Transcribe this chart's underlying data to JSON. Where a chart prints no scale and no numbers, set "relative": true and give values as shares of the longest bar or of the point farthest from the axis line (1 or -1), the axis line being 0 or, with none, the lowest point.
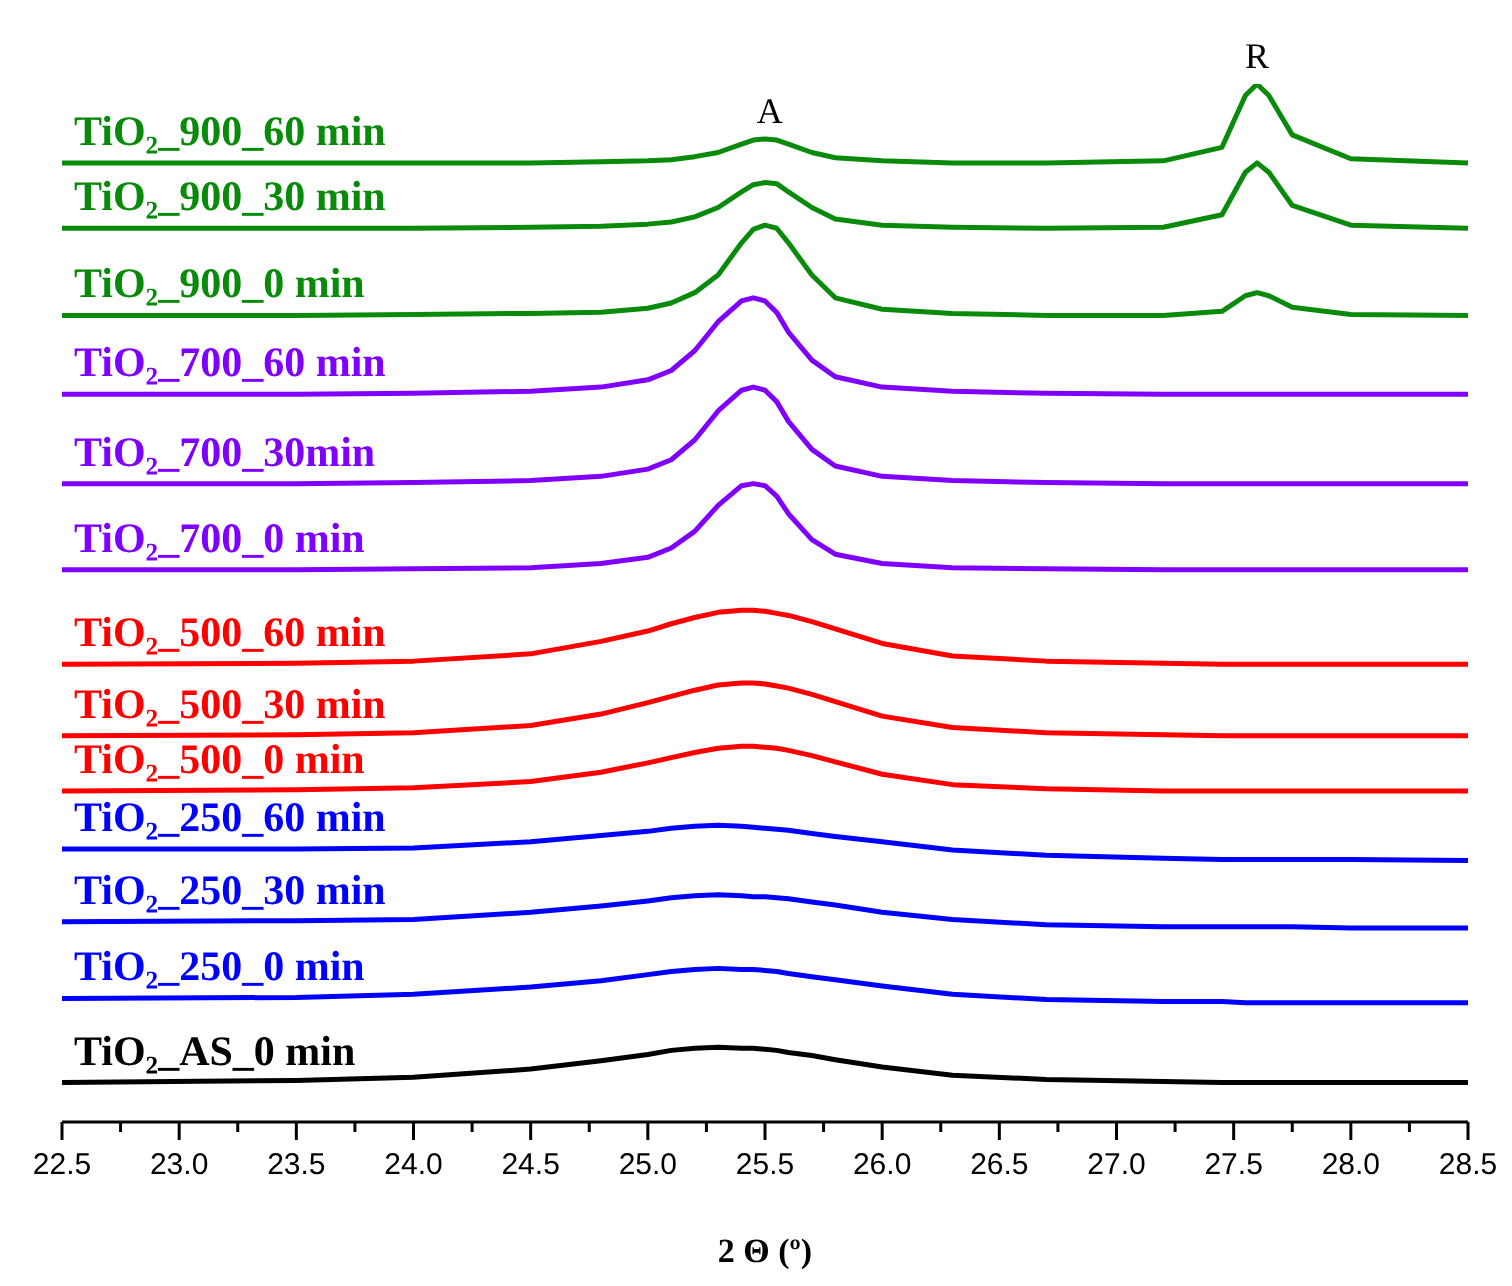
{
  "chart_data": {
    "type": "line",
    "relative": true,
    "xlabel": "2 Θ (º)",
    "legend": false,
    "grid": false,
    "marker": "none",
    "line_style": "solid",
    "xlim": [
      22.5,
      28.5
    ],
    "xticks": [
      {
        "value": 22.5,
        "label": "22.5"
      },
      {
        "value": 22.75,
        "label": null
      },
      {
        "value": 23,
        "label": "23.0"
      },
      {
        "value": 23.25,
        "label": null
      },
      {
        "value": 23.5,
        "label": "23.5"
      },
      {
        "value": 23.75,
        "label": null
      },
      {
        "value": 24,
        "label": "24.0"
      },
      {
        "value": 24.25,
        "label": null
      },
      {
        "value": 24.5,
        "label": "24.5"
      },
      {
        "value": 24.75,
        "label": null
      },
      {
        "value": 25,
        "label": "25.0"
      },
      {
        "value": 25.25,
        "label": null
      },
      {
        "value": 25.5,
        "label": "25.5"
      },
      {
        "value": 25.75,
        "label": null
      },
      {
        "value": 26,
        "label": "26.0"
      },
      {
        "value": 26.25,
        "label": null
      },
      {
        "value": 26.5,
        "label": "26.5"
      },
      {
        "value": 26.75,
        "label": null
      },
      {
        "value": 27,
        "label": "27.0"
      },
      {
        "value": 27.25,
        "label": null
      },
      {
        "value": 27.5,
        "label": "27.5"
      },
      {
        "value": 27.75,
        "label": null
      },
      {
        "value": 28,
        "label": "28.0"
      },
      {
        "value": 28.25,
        "label": null
      },
      {
        "value": 28.5,
        "label": "28.5"
      }
    ],
    "x": [
      22.5,
      23.5,
      24.0,
      24.5,
      24.8,
      25.0,
      25.1,
      25.2,
      25.3,
      25.4,
      25.45,
      25.5,
      25.55,
      25.6,
      25.7,
      25.8,
      26.0,
      26.3,
      26.7,
      27.2,
      27.45,
      27.55,
      27.6,
      27.65,
      27.75,
      28.0,
      28.5
    ],
    "annotations": [
      {
        "text": "A",
        "x": 25.52,
        "y": 0.947
      },
      {
        "text": "R",
        "x": 27.6,
        "y": 1.0
      }
    ],
    "series": [
      {
        "name": "TiO₂_900_60 min",
        "color": "#0a8a0a",
        "values": [
          0.924,
          0.924,
          0.924,
          0.924,
          0.925,
          0.926,
          0.927,
          0.93,
          0.934,
          0.942,
          0.946,
          0.947,
          0.946,
          0.942,
          0.934,
          0.929,
          0.926,
          0.924,
          0.924,
          0.926,
          0.939,
          0.989,
          1.0,
          0.989,
          0.951,
          0.928,
          0.924
        ]
      },
      {
        "name": "TiO₂_900_30 min",
        "color": "#0a8a0a",
        "values": [
          0.861,
          0.861,
          0.861,
          0.862,
          0.863,
          0.865,
          0.867,
          0.872,
          0.881,
          0.896,
          0.903,
          0.905,
          0.904,
          0.896,
          0.881,
          0.87,
          0.864,
          0.862,
          0.861,
          0.862,
          0.874,
          0.915,
          0.924,
          0.915,
          0.883,
          0.864,
          0.861
        ]
      },
      {
        "name": "TiO₂_900_0 min",
        "color": "#0a8a0a",
        "values": [
          0.777,
          0.777,
          0.778,
          0.779,
          0.78,
          0.784,
          0.789,
          0.799,
          0.816,
          0.847,
          0.86,
          0.864,
          0.861,
          0.847,
          0.816,
          0.794,
          0.783,
          0.779,
          0.777,
          0.777,
          0.781,
          0.796,
          0.799,
          0.796,
          0.785,
          0.778,
          0.777
        ]
      },
      {
        "name": "TiO₂_700_60 min",
        "color": "#8000ff",
        "values": [
          0.701,
          0.701,
          0.702,
          0.704,
          0.708,
          0.715,
          0.724,
          0.743,
          0.771,
          0.791,
          0.794,
          0.791,
          0.78,
          0.761,
          0.734,
          0.718,
          0.708,
          0.704,
          0.702,
          0.701,
          0.701,
          0.701,
          0.701,
          0.701,
          0.701,
          0.701,
          0.701
        ]
      },
      {
        "name": "TiO₂_700_30min",
        "color": "#8000ff",
        "values": [
          0.615,
          0.615,
          0.616,
          0.618,
          0.622,
          0.629,
          0.638,
          0.657,
          0.685,
          0.705,
          0.708,
          0.705,
          0.694,
          0.675,
          0.648,
          0.632,
          0.622,
          0.618,
          0.616,
          0.615,
          0.615,
          0.615,
          0.615,
          0.615,
          0.615,
          0.615,
          0.615
        ]
      },
      {
        "name": "TiO₂_700_0 min",
        "color": "#8000ff",
        "values": [
          0.532,
          0.532,
          0.533,
          0.534,
          0.538,
          0.544,
          0.553,
          0.569,
          0.594,
          0.613,
          0.615,
          0.613,
          0.603,
          0.586,
          0.561,
          0.547,
          0.538,
          0.534,
          0.533,
          0.532,
          0.532,
          0.532,
          0.532,
          0.532,
          0.532,
          0.532,
          0.532
        ]
      },
      {
        "name": "TiO₂_500_60 min",
        "color": "#ff0000",
        "values": [
          0.441,
          0.442,
          0.444,
          0.451,
          0.463,
          0.473,
          0.48,
          0.486,
          0.491,
          0.493,
          0.493,
          0.492,
          0.49,
          0.488,
          0.482,
          0.475,
          0.461,
          0.449,
          0.444,
          0.442,
          0.441,
          0.441,
          0.441,
          0.441,
          0.441,
          0.441,
          0.441
        ]
      },
      {
        "name": "TiO₂_500_30 min",
        "color": "#ff0000",
        "values": [
          0.372,
          0.373,
          0.375,
          0.382,
          0.393,
          0.404,
          0.41,
          0.416,
          0.421,
          0.423,
          0.423,
          0.422,
          0.42,
          0.418,
          0.412,
          0.405,
          0.391,
          0.38,
          0.375,
          0.373,
          0.372,
          0.372,
          0.372,
          0.372,
          0.372,
          0.372,
          0.372
        ]
      },
      {
        "name": "TiO₂_500_0 min",
        "color": "#ff0000",
        "values": [
          0.319,
          0.32,
          0.322,
          0.328,
          0.337,
          0.346,
          0.351,
          0.356,
          0.36,
          0.362,
          0.362,
          0.361,
          0.36,
          0.358,
          0.353,
          0.347,
          0.335,
          0.325,
          0.321,
          0.319,
          0.319,
          0.319,
          0.319,
          0.319,
          0.319,
          0.319,
          0.319
        ]
      },
      {
        "name": "TiO₂_250_60 min",
        "color": "#0000ff",
        "values": [
          0.263,
          0.263,
          0.264,
          0.27,
          0.276,
          0.28,
          0.283,
          0.285,
          0.286,
          0.285,
          0.284,
          0.283,
          0.282,
          0.281,
          0.278,
          0.275,
          0.27,
          0.262,
          0.257,
          0.254,
          0.253,
          0.253,
          0.253,
          0.253,
          0.253,
          0.253,
          0.252
        ]
      },
      {
        "name": "TiO₂_250_30 min",
        "color": "#0000ff",
        "values": [
          0.193,
          0.194,
          0.195,
          0.202,
          0.208,
          0.213,
          0.216,
          0.218,
          0.219,
          0.218,
          0.217,
          0.217,
          0.216,
          0.215,
          0.212,
          0.209,
          0.202,
          0.195,
          0.19,
          0.188,
          0.188,
          0.188,
          0.188,
          0.188,
          0.188,
          0.187,
          0.187
        ]
      },
      {
        "name": "TiO₂_250_0 min",
        "color": "#0000ff",
        "values": [
          0.119,
          0.12,
          0.123,
          0.13,
          0.136,
          0.142,
          0.145,
          0.147,
          0.148,
          0.147,
          0.147,
          0.146,
          0.145,
          0.143,
          0.14,
          0.137,
          0.131,
          0.123,
          0.118,
          0.116,
          0.116,
          0.115,
          0.115,
          0.115,
          0.115,
          0.115,
          0.115
        ]
      },
      {
        "name": "TiO₂_AS_0 min",
        "color": "#000000",
        "values": [
          0.038,
          0.04,
          0.043,
          0.051,
          0.059,
          0.065,
          0.069,
          0.071,
          0.072,
          0.071,
          0.071,
          0.07,
          0.069,
          0.067,
          0.064,
          0.06,
          0.053,
          0.045,
          0.041,
          0.039,
          0.038,
          0.038,
          0.038,
          0.038,
          0.038,
          0.038,
          0.038
        ]
      }
    ]
  }
}
